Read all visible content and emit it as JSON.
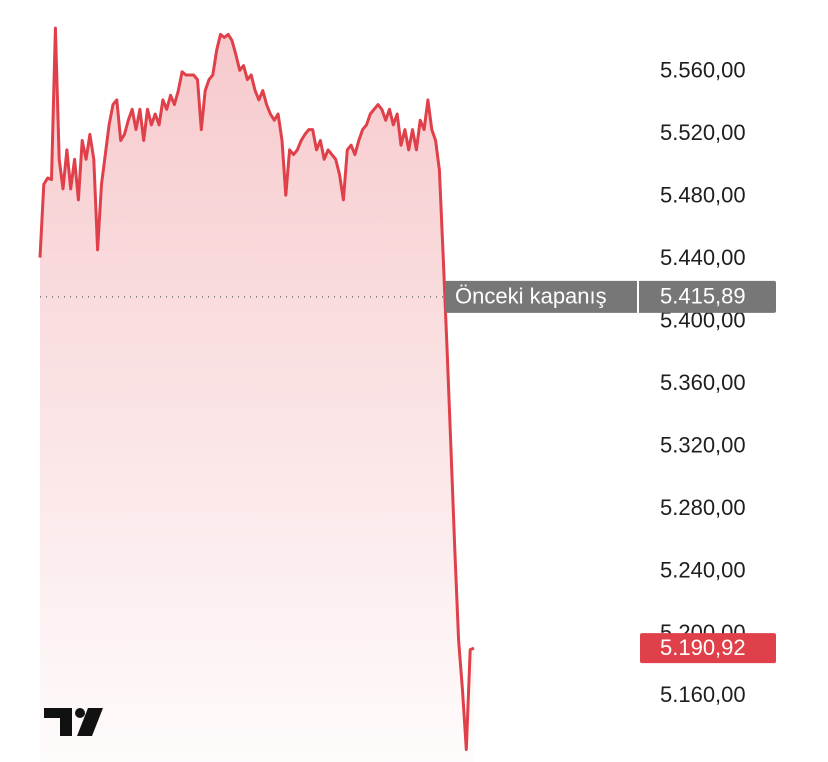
{
  "chart_data": {
    "type": "line",
    "color": "#e0404a",
    "values": [
      5441,
      5488,
      5492,
      5491,
      5588,
      5504,
      5485,
      5510,
      5485,
      5504,
      5478,
      5516,
      5504,
      5520,
      5504,
      5446,
      5488,
      5507,
      5526,
      5539,
      5542,
      5516,
      5520,
      5529,
      5536,
      5523,
      5536,
      5516,
      5536,
      5526,
      5533,
      5526,
      5542,
      5536,
      5545,
      5539,
      5548,
      5560,
      5558,
      5558,
      5558,
      5555,
      5523,
      5548,
      5555,
      5558,
      5574,
      5584,
      5582,
      5584,
      5580,
      5571,
      5561,
      5564,
      5555,
      5558,
      5548,
      5542,
      5548,
      5539,
      5533,
      5529,
      5533,
      5516,
      5481,
      5510,
      5507,
      5510,
      5516,
      5520,
      5523,
      5523,
      5510,
      5516,
      5504,
      5510,
      5507,
      5504,
      5494,
      5478,
      5510,
      5513,
      5507,
      5516,
      5523,
      5526,
      5533,
      5536,
      5539,
      5536,
      5529,
      5536,
      5526,
      5533,
      5513,
      5523,
      5510,
      5523,
      5510,
      5529,
      5523,
      5542,
      5523,
      5516,
      5497,
      5440,
      5382,
      5318,
      5254,
      5196,
      5164,
      5126,
      5190,
      5190.92
    ],
    "ylim": [
      5118,
      5606
    ],
    "yticks": [
      {
        "value": 5160,
        "label": "5.160,00"
      },
      {
        "value": 5200,
        "label": "5.200,00"
      },
      {
        "value": 5240,
        "label": "5.240,00"
      },
      {
        "value": 5280,
        "label": "5.280,00"
      },
      {
        "value": 5320,
        "label": "5.320,00"
      },
      {
        "value": 5360,
        "label": "5.360,00"
      },
      {
        "value": 5400,
        "label": "5.400,00"
      },
      {
        "value": 5440,
        "label": "5.440,00"
      },
      {
        "value": 5480,
        "label": "5.480,00"
      },
      {
        "value": 5520,
        "label": "5.520,00"
      },
      {
        "value": 5560,
        "label": "5.560,00"
      }
    ],
    "previous_close": {
      "label": "Önceki kapanış",
      "value": 5415.89,
      "value_label": "5.415,89"
    },
    "last_price": {
      "value": 5190.92,
      "value_label": "5.190,92"
    }
  }
}
